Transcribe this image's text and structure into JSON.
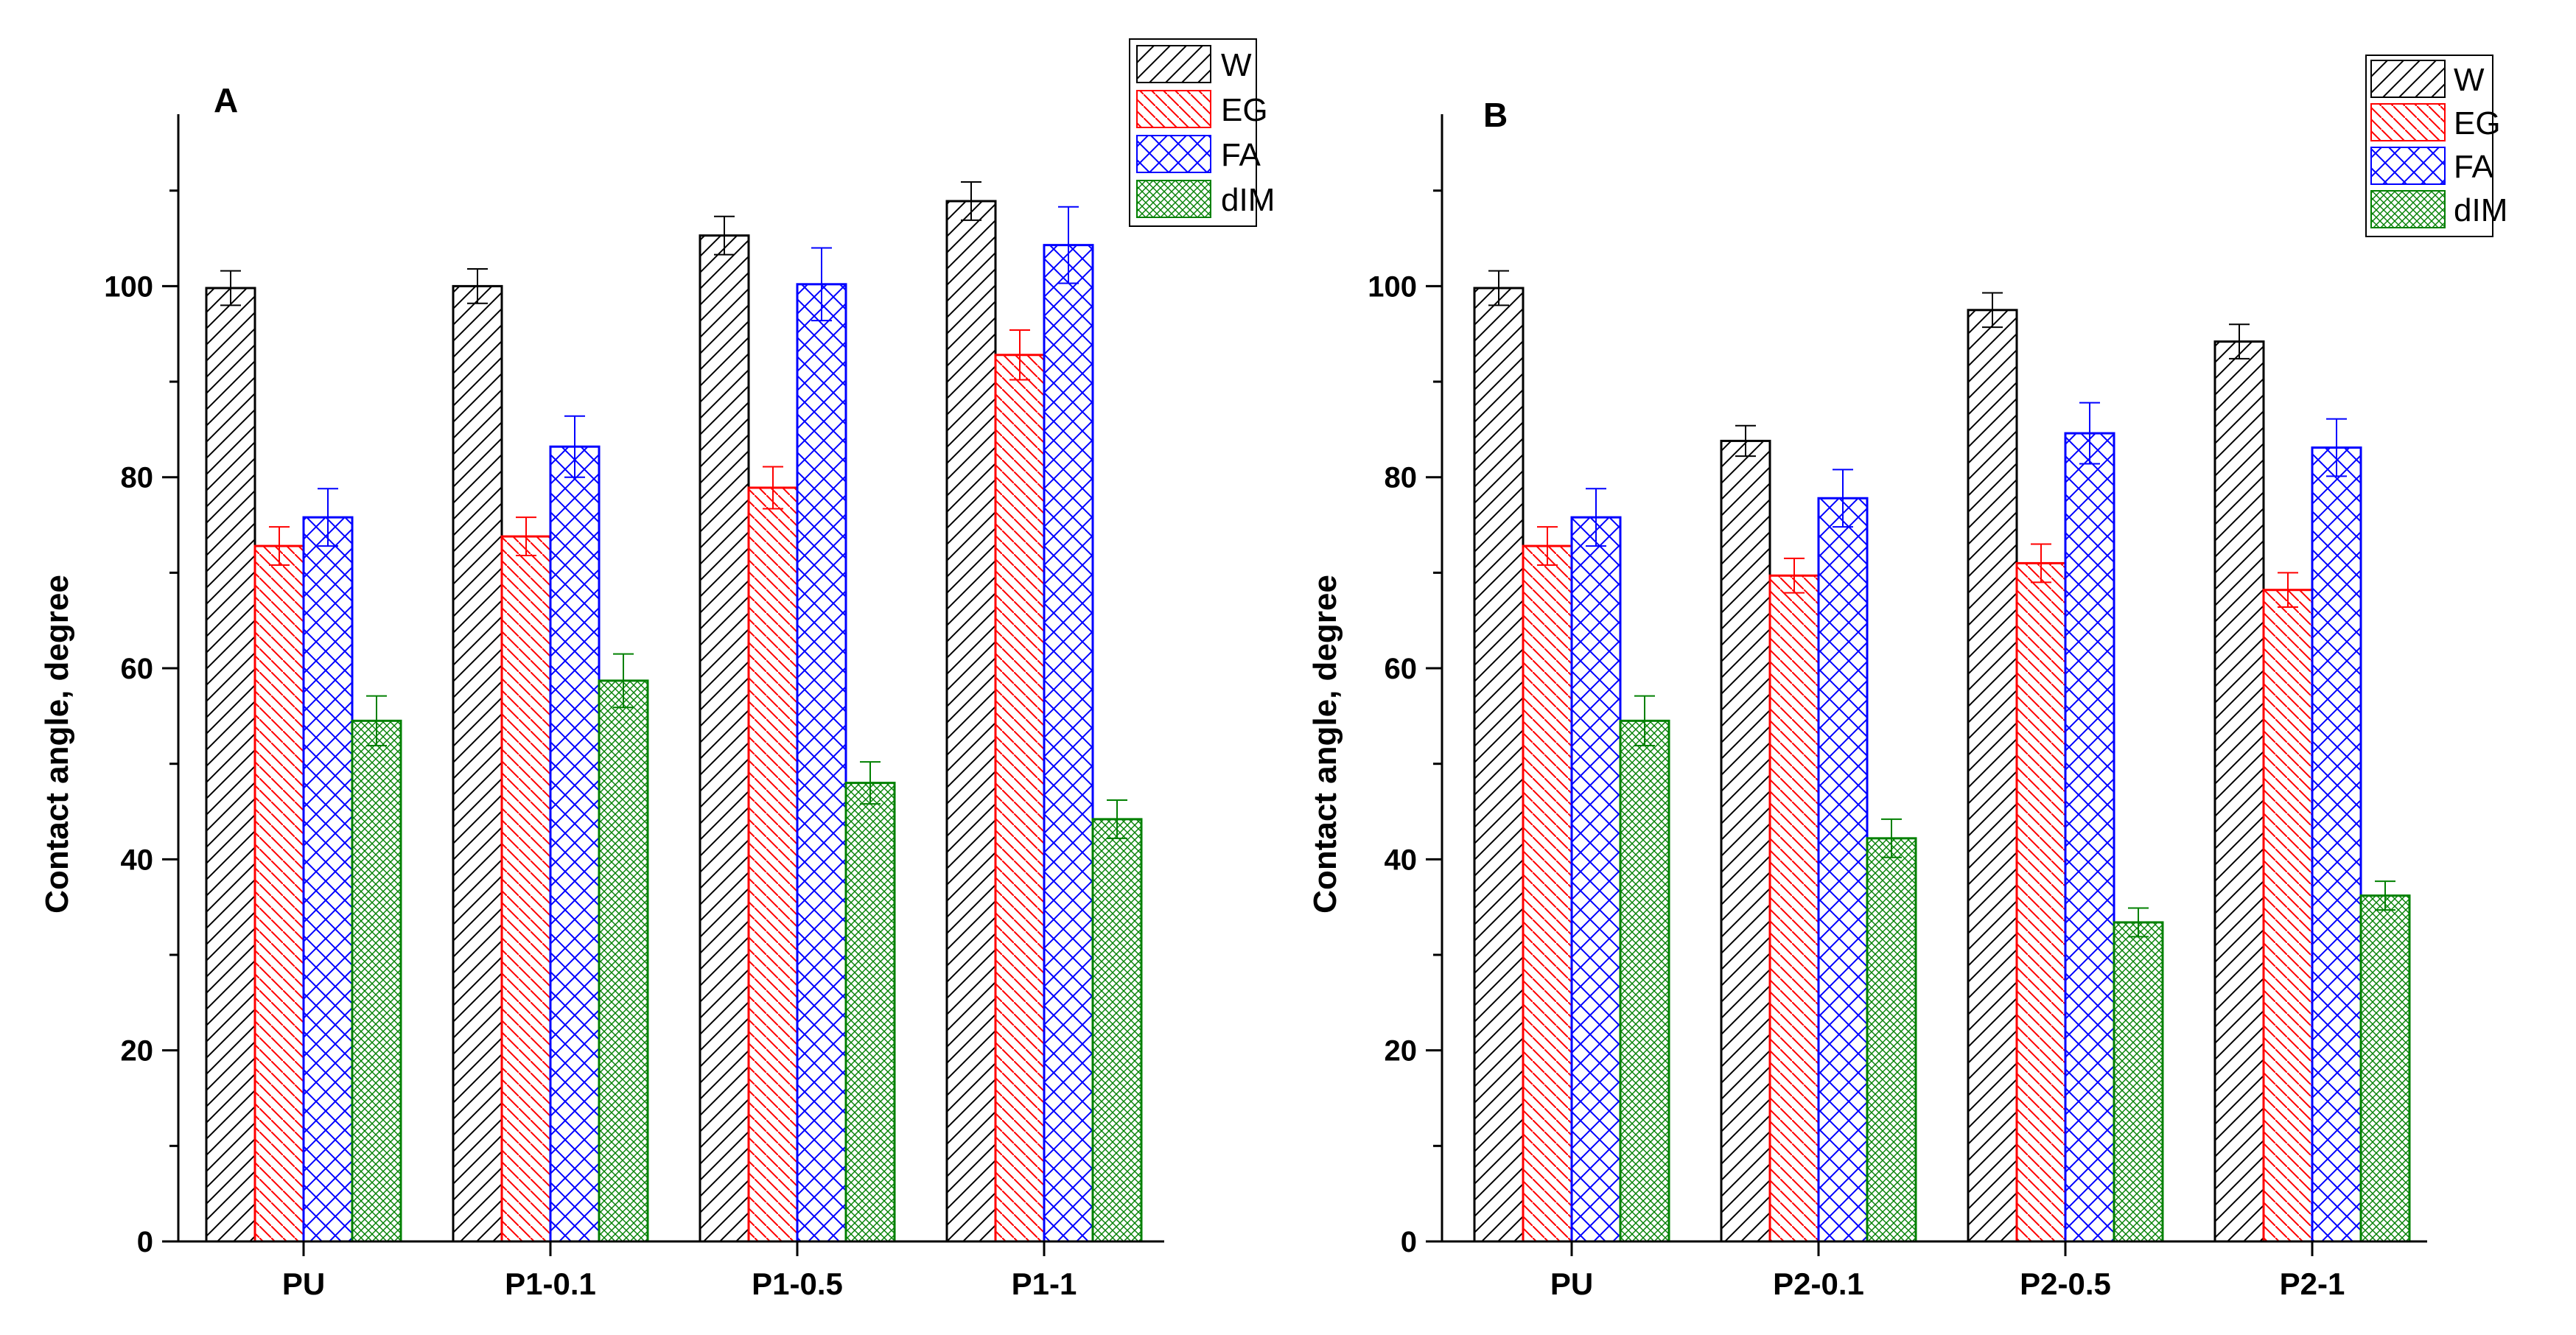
{
  "chart_data": [
    {
      "type": "bar",
      "panel_label": "A",
      "ylabel": "Contact angle, degree",
      "xlabel": "",
      "ylim": [
        0,
        118
      ],
      "yticks": [
        0,
        20,
        40,
        60,
        80,
        100
      ],
      "categories": [
        "PU",
        "P1-0.1",
        "P1-0.5",
        "P1-1"
      ],
      "series": [
        {
          "name": "W",
          "values": [
            99.8,
            100.0,
            105.3,
            108.9
          ],
          "errors": [
            1.8,
            1.8,
            2.0,
            2.0
          ]
        },
        {
          "name": "EG",
          "values": [
            72.8,
            73.8,
            78.9,
            92.8
          ],
          "errors": [
            2.0,
            2.0,
            2.2,
            2.6
          ]
        },
        {
          "name": "FA",
          "values": [
            75.8,
            83.2,
            100.2,
            104.3
          ],
          "errors": [
            3.0,
            3.2,
            3.8,
            4.0
          ]
        },
        {
          "name": "dIM",
          "values": [
            54.5,
            58.7,
            48.0,
            44.2
          ],
          "errors": [
            2.6,
            2.8,
            2.2,
            2.0
          ]
        }
      ],
      "legend_position": "top-right"
    },
    {
      "type": "bar",
      "panel_label": "B",
      "ylabel": "Contact angle, degree",
      "xlabel": "",
      "ylim": [
        0,
        118
      ],
      "yticks": [
        0,
        20,
        40,
        60,
        80,
        100
      ],
      "categories": [
        "PU",
        "P2-0.1",
        "P2-0.5",
        "P2-1"
      ],
      "series": [
        {
          "name": "W",
          "values": [
            99.8,
            83.8,
            97.5,
            94.2
          ],
          "errors": [
            1.8,
            1.6,
            1.8,
            1.8
          ]
        },
        {
          "name": "EG",
          "values": [
            72.8,
            69.7,
            71.0,
            68.2
          ],
          "errors": [
            2.0,
            1.8,
            2.0,
            1.8
          ]
        },
        {
          "name": "FA",
          "values": [
            75.8,
            77.8,
            84.6,
            83.1
          ],
          "errors": [
            3.0,
            3.0,
            3.2,
            3.0
          ]
        },
        {
          "name": "dIM",
          "values": [
            54.5,
            42.2,
            33.4,
            36.2
          ],
          "errors": [
            2.6,
            2.0,
            1.5,
            1.5
          ]
        }
      ],
      "legend_position": "top-right"
    }
  ],
  "series_colors": {
    "W": "#000000",
    "EG": "#ff0000",
    "FA": "#0000ff",
    "dIM": "#008000"
  },
  "series_patterns": {
    "W": "diag-right",
    "EG": "diag-left",
    "FA": "cross",
    "dIM": "crosshatch-fine"
  }
}
